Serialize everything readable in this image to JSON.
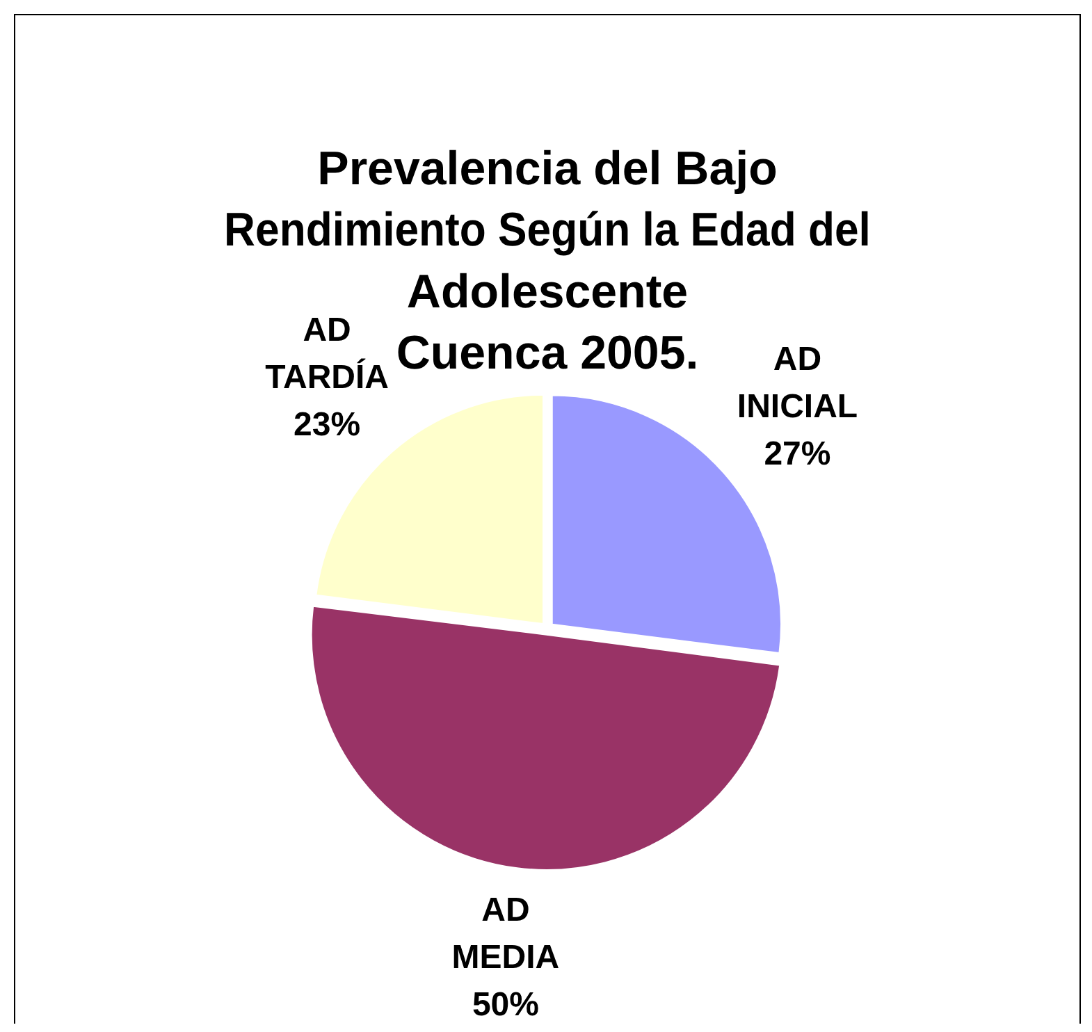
{
  "chart_data": {
    "type": "pie",
    "title": "Prevalencia del Bajo\nRendimiento Según la Edad del\nAdolescente\nCuenca 2005.",
    "categories": [
      "AD INICIAL",
      "AD MEDIA",
      "AD TARDÍA"
    ],
    "values": [
      27,
      50,
      23
    ],
    "colors": [
      "#9999ff",
      "#993366",
      "#ffffcc"
    ],
    "value_labels": [
      "27%",
      "50%",
      "23%"
    ],
    "legend": false
  }
}
